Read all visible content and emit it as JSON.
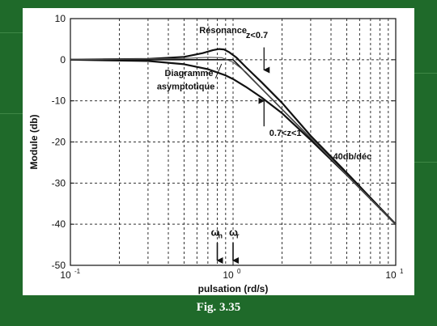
{
  "figure_caption": "Fig. 3.35",
  "colors": {
    "background": "#1f6a2a",
    "curve": "#111111",
    "grid": "#222222"
  },
  "chart_data": {
    "type": "line",
    "xscale": "log",
    "xlim": [
      0.1,
      10
    ],
    "ylim": [
      -50,
      10
    ],
    "grid": true,
    "xlabel": "pulsation (rd/s)",
    "ylabel": "Module (db)",
    "x_ticks": [
      {
        "value": 0.1,
        "label": "10",
        "exp": "-1"
      },
      {
        "value": 1,
        "label": "10",
        "exp": "0"
      },
      {
        "value": 10,
        "label": "10",
        "exp": "1"
      }
    ],
    "y_ticks": [
      10,
      0,
      -10,
      -20,
      -30,
      -40,
      -50
    ],
    "series": [
      {
        "key": "resonance",
        "points": [
          [
            0.1,
            0
          ],
          [
            0.3,
            0.2
          ],
          [
            0.5,
            0.7
          ],
          [
            0.65,
            1.6
          ],
          [
            0.75,
            2.3
          ],
          [
            0.82,
            2.6
          ],
          [
            0.88,
            2.5
          ],
          [
            0.95,
            1.8
          ],
          [
            1.05,
            0.5
          ],
          [
            1.2,
            -1.8
          ],
          [
            1.5,
            -5.5
          ],
          [
            2,
            -10.5
          ],
          [
            3,
            -18.5
          ],
          [
            5,
            -27.5
          ],
          [
            10,
            -40
          ]
        ]
      },
      {
        "key": "asymptotic",
        "points": [
          [
            0.1,
            0
          ],
          [
            1,
            0
          ],
          [
            10,
            -40
          ]
        ]
      },
      {
        "key": "damped",
        "points": [
          [
            0.1,
            0
          ],
          [
            0.3,
            -0.3
          ],
          [
            0.5,
            -1.1
          ],
          [
            0.7,
            -2.3
          ],
          [
            0.9,
            -3.8
          ],
          [
            1,
            -4.7
          ],
          [
            1.2,
            -6.6
          ],
          [
            1.5,
            -9.2
          ],
          [
            2,
            -13
          ],
          [
            3,
            -19.5
          ],
          [
            5,
            -28
          ],
          [
            10,
            -40
          ]
        ]
      },
      {
        "key": "mid",
        "points": [
          [
            0.1,
            0
          ],
          [
            0.5,
            0.3
          ],
          [
            0.7,
            0.6
          ],
          [
            0.85,
            0.5
          ],
          [
            1,
            -0.6
          ],
          [
            1.2,
            -3
          ],
          [
            1.5,
            -7
          ],
          [
            2,
            -12
          ],
          [
            3,
            -19
          ],
          [
            5,
            -28
          ],
          [
            10,
            -40
          ]
        ]
      }
    ],
    "annotations": {
      "resonance": "Résonance",
      "z_low": "z<0.7",
      "asymptotic_1": "Diagramme",
      "asymptotic_2": "asymptotique",
      "z_mid": "0.7<z<1",
      "slope": "-40db/déc",
      "omega_n": "ω",
      "omega_n_sub": "n",
      "omega_r": "ω",
      "omega_r_sub": "r"
    },
    "markers": [
      {
        "key": "omega_n",
        "x": 0.8
      },
      {
        "key": "omega_r",
        "x": 1.0
      }
    ]
  }
}
